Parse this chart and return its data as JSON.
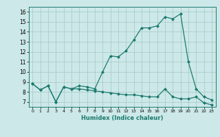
{
  "xlabel": "Humidex (Indice chaleur)",
  "line1_x": [
    0,
    1,
    2,
    3,
    4,
    5,
    6,
    7,
    8,
    9,
    10,
    11,
    12,
    13,
    14,
    15,
    16,
    17,
    18,
    19,
    20,
    21,
    22,
    23
  ],
  "line1_y": [
    8.8,
    8.2,
    8.6,
    7.0,
    8.5,
    8.3,
    8.6,
    8.5,
    8.3,
    10.0,
    11.6,
    11.5,
    12.1,
    13.2,
    14.4,
    14.4,
    14.6,
    15.5,
    15.3,
    15.8,
    11.0,
    8.3,
    7.5,
    7.2
  ],
  "line2_x": [
    0,
    1,
    2,
    3,
    4,
    5,
    6,
    7,
    8,
    9,
    10,
    11,
    12,
    13,
    14,
    15,
    16,
    17,
    18,
    19,
    20,
    21,
    22,
    23
  ],
  "line2_y": [
    8.8,
    8.2,
    8.6,
    7.0,
    8.5,
    8.3,
    8.3,
    8.2,
    8.1,
    8.0,
    7.9,
    7.8,
    7.7,
    7.7,
    7.6,
    7.5,
    7.5,
    8.3,
    7.5,
    7.3,
    7.3,
    7.5,
    6.9,
    6.7
  ],
  "line_color": "#1a7a6e",
  "bg_color": "#cde8e8",
  "grid_color": "#aacccc",
  "xlim": [
    -0.5,
    23.5
  ],
  "ylim": [
    6.5,
    16.5
  ],
  "yticks": [
    7,
    8,
    9,
    10,
    11,
    12,
    13,
    14,
    15,
    16
  ],
  "xticks": [
    0,
    1,
    2,
    3,
    4,
    5,
    6,
    7,
    8,
    9,
    10,
    11,
    12,
    13,
    14,
    15,
    16,
    17,
    18,
    19,
    20,
    21,
    22,
    23
  ],
  "marker_size": 2.0,
  "linewidth": 0.9
}
